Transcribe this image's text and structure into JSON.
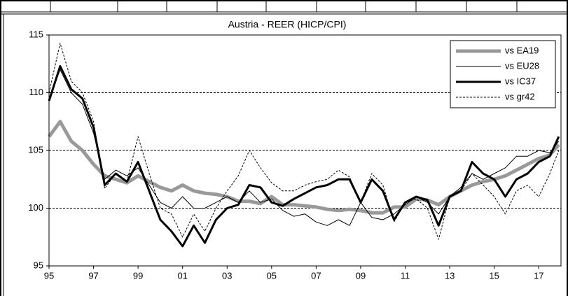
{
  "chart_data": {
    "type": "line",
    "title": "Austria - REER (HICP/CPI)",
    "x": [
      1995,
      1995.5,
      1996,
      1996.5,
      1997,
      1997.5,
      1998,
      1998.5,
      1999,
      1999.5,
      2000,
      2000.5,
      2001,
      2001.5,
      2002,
      2002.5,
      2003,
      2003.5,
      2004,
      2004.5,
      2005,
      2005.5,
      2006,
      2006.5,
      2007,
      2007.5,
      2008,
      2008.5,
      2009,
      2009.5,
      2010,
      2010.5,
      2011,
      2011.5,
      2012,
      2012.5,
      2013,
      2013.5,
      2014,
      2014.5,
      2015,
      2015.5,
      2016,
      2016.5,
      2017,
      2017.5,
      2017.9
    ],
    "series": [
      {
        "name": "vs EA19",
        "color": "#999999",
        "line_width": 5,
        "line_style": "solid",
        "values": [
          106.2,
          107.5,
          105.8,
          105,
          103.8,
          102.8,
          102.5,
          102.2,
          102.8,
          102.3,
          101.8,
          101.5,
          102,
          101.5,
          101.3,
          101.2,
          101,
          100.6,
          100.6,
          100.4,
          101,
          100.3,
          100.3,
          100.2,
          100.1,
          99.9,
          99.8,
          99.9,
          99.8,
          99.6,
          99.6,
          100.1,
          100.1,
          100.8,
          100.7,
          100.3,
          101,
          101.5,
          102,
          102.3,
          102.5,
          102.8,
          103.3,
          103.8,
          104.3,
          104.6,
          105.5
        ]
      },
      {
        "name": "vs EU28",
        "color": "#000000",
        "line_width": 1,
        "line_style": "solid",
        "values": [
          109.5,
          112,
          110,
          109,
          106.5,
          102.5,
          103.3,
          102.8,
          103.5,
          102,
          100.5,
          100,
          101,
          100,
          100,
          100.5,
          101,
          100.5,
          101.5,
          100.5,
          100.8,
          99.8,
          99.3,
          99.5,
          98.8,
          98.5,
          99,
          98.5,
          100.5,
          99.2,
          99,
          99.5,
          100.3,
          101,
          100.5,
          99.5,
          101,
          101.8,
          103,
          102.5,
          103,
          103.5,
          104.5,
          104.5,
          105,
          104.8,
          105.8
        ]
      },
      {
        "name": "vs IC37",
        "color": "#000000",
        "line_width": 3,
        "line_style": "solid",
        "values": [
          109.3,
          112.3,
          110.3,
          109.5,
          107,
          102,
          103,
          102.3,
          104,
          101.5,
          99,
          98,
          96.7,
          98.5,
          97,
          99,
          100,
          100.3,
          102,
          101.8,
          100.5,
          100.2,
          100.8,
          101.3,
          101.8,
          102,
          102.5,
          102.5,
          100.5,
          102.5,
          101.5,
          99,
          100.5,
          101,
          100.7,
          98.5,
          101,
          101.5,
          104,
          103,
          102.5,
          101,
          102.5,
          103,
          104,
          104.5,
          106.2
        ]
      },
      {
        "name": "vs gr42",
        "color": "#000000",
        "line_width": 1,
        "line_style": "dashed",
        "values": [
          110,
          114.3,
          111,
          110,
          107.5,
          101.7,
          103,
          102.3,
          106.2,
          103,
          100,
          99.5,
          97.5,
          99.5,
          98,
          100,
          101.5,
          102.8,
          105,
          103.5,
          102.2,
          101.5,
          101.5,
          102,
          102.3,
          102.5,
          103.3,
          102.7,
          100.5,
          103,
          102,
          98.8,
          100.5,
          100.8,
          100,
          97.3,
          101,
          101.5,
          103,
          102,
          101,
          99.5,
          101.5,
          102,
          101,
          103,
          105
        ]
      }
    ],
    "xlim": [
      1995,
      2018
    ],
    "xticks": [
      {
        "value": 1995,
        "label": "95"
      },
      {
        "value": 1997,
        "label": "97"
      },
      {
        "value": 1999,
        "label": "99"
      },
      {
        "value": 2001,
        "label": "01"
      },
      {
        "value": 2003,
        "label": "03"
      },
      {
        "value": 2005,
        "label": "05"
      },
      {
        "value": 2007,
        "label": "07"
      },
      {
        "value": 2009,
        "label": "09"
      },
      {
        "value": 2011,
        "label": "11"
      },
      {
        "value": 2013,
        "label": "13"
      },
      {
        "value": 2015,
        "label": "15"
      },
      {
        "value": 2017,
        "label": "17"
      }
    ],
    "ylim": [
      95,
      115
    ],
    "yticks": [
      95,
      100,
      105,
      110,
      115
    ],
    "grid": true,
    "legend": "top-right"
  }
}
